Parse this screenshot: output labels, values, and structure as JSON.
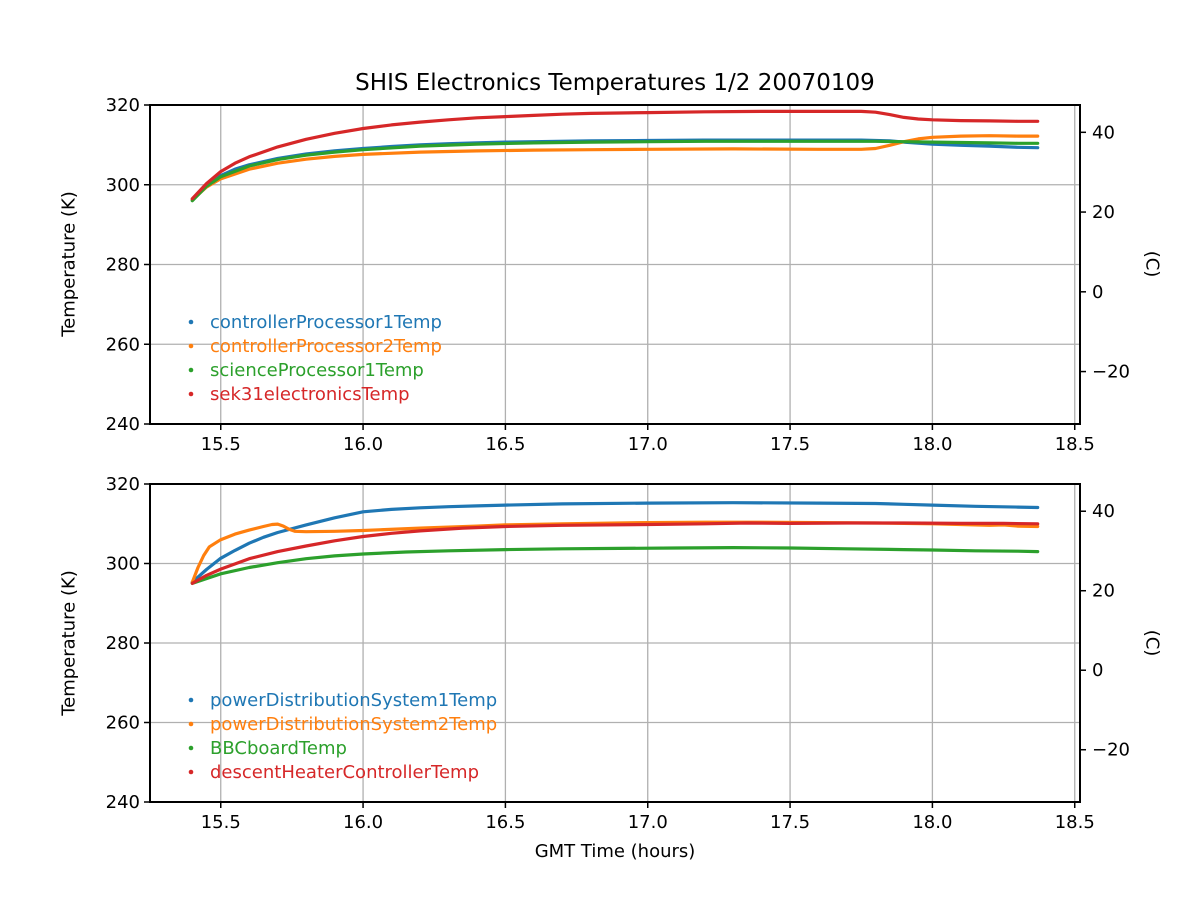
{
  "figure": {
    "title": "SHIS Electronics Temperatures 1/2 20070109",
    "background": "#ffffff",
    "text_color": "#000000",
    "grid_color": "#b0b0b0",
    "axis_color": "#000000"
  },
  "chart_data": [
    {
      "type": "line",
      "title": "",
      "xlabel": "",
      "ylabel": "Temperature (K)",
      "ylabel_right": "(C)",
      "xlim": [
        15.2515,
        18.5185
      ],
      "ylim": [
        240,
        320
      ],
      "grid": true,
      "legend_position": "lower-left",
      "xticks": [
        {
          "label": "15.5",
          "value": 15.5
        },
        {
          "label": "16.0",
          "value": 16.0
        },
        {
          "label": "16.5",
          "value": 16.5
        },
        {
          "label": "17.0",
          "value": 17.0
        },
        {
          "label": "17.5",
          "value": 17.5
        },
        {
          "label": "18.0",
          "value": 18.0
        },
        {
          "label": "18.5",
          "value": 18.5
        }
      ],
      "yticks": [
        {
          "label": "240",
          "value": 240
        },
        {
          "label": "260",
          "value": 260
        },
        {
          "label": "280",
          "value": 280
        },
        {
          "label": "300",
          "value": 300
        },
        {
          "label": "320",
          "value": 320
        }
      ],
      "yticks_right": [
        {
          "label": "−20",
          "value_c": -20,
          "value_k": 253.15
        },
        {
          "label": "0",
          "value_c": 0,
          "value_k": 273.15
        },
        {
          "label": "20",
          "value_c": 20,
          "value_k": 293.15
        },
        {
          "label": "40",
          "value_c": 40,
          "value_k": 313.15
        }
      ],
      "series": [
        {
          "name": "controllerProcessor1Temp",
          "color": "#1f77b4",
          "points": [
            [
              15.4,
              296.2
            ],
            [
              15.45,
              299.8
            ],
            [
              15.5,
              302.3
            ],
            [
              15.55,
              303.9
            ],
            [
              15.6,
              305.0
            ],
            [
              15.7,
              306.6
            ],
            [
              15.8,
              307.7
            ],
            [
              15.9,
              308.5
            ],
            [
              16.0,
              309.1
            ],
            [
              16.1,
              309.6
            ],
            [
              16.2,
              310.0
            ],
            [
              16.3,
              310.3
            ],
            [
              16.4,
              310.5
            ],
            [
              16.5,
              310.7
            ],
            [
              16.6,
              310.8
            ],
            [
              16.8,
              311.0
            ],
            [
              17.0,
              311.1
            ],
            [
              17.2,
              311.2
            ],
            [
              17.4,
              311.2
            ],
            [
              17.6,
              311.2
            ],
            [
              17.75,
              311.2
            ],
            [
              17.85,
              311.0
            ],
            [
              17.9,
              310.7
            ],
            [
              18.0,
              310.2
            ],
            [
              18.1,
              309.9
            ],
            [
              18.2,
              309.7
            ],
            [
              18.3,
              309.4
            ],
            [
              18.37,
              309.3
            ]
          ]
        },
        {
          "name": "controllerProcessor2Temp",
          "color": "#ff7f0e",
          "points": [
            [
              15.4,
              296.2
            ],
            [
              15.45,
              299.4
            ],
            [
              15.5,
              301.5
            ],
            [
              15.6,
              303.9
            ],
            [
              15.7,
              305.4
            ],
            [
              15.8,
              306.4
            ],
            [
              15.9,
              307.1
            ],
            [
              16.0,
              307.6
            ],
            [
              16.2,
              308.2
            ],
            [
              16.4,
              308.5
            ],
            [
              16.6,
              308.7
            ],
            [
              16.8,
              308.8
            ],
            [
              17.0,
              308.9
            ],
            [
              17.3,
              309.0
            ],
            [
              17.6,
              308.9
            ],
            [
              17.75,
              308.9
            ],
            [
              17.8,
              309.1
            ],
            [
              17.85,
              309.9
            ],
            [
              17.9,
              310.8
            ],
            [
              17.95,
              311.5
            ],
            [
              18.0,
              311.9
            ],
            [
              18.1,
              312.2
            ],
            [
              18.2,
              312.3
            ],
            [
              18.3,
              312.2
            ],
            [
              18.37,
              312.2
            ]
          ]
        },
        {
          "name": "scienceProcessor1Temp",
          "color": "#2ca02c",
          "points": [
            [
              15.4,
              296.0
            ],
            [
              15.45,
              299.6
            ],
            [
              15.5,
              302.0
            ],
            [
              15.6,
              304.7
            ],
            [
              15.7,
              306.3
            ],
            [
              15.8,
              307.4
            ],
            [
              15.9,
              308.2
            ],
            [
              16.0,
              308.8
            ],
            [
              16.2,
              309.7
            ],
            [
              16.4,
              310.2
            ],
            [
              16.6,
              310.5
            ],
            [
              16.8,
              310.7
            ],
            [
              17.0,
              310.8
            ],
            [
              17.2,
              310.9
            ],
            [
              17.5,
              310.9
            ],
            [
              17.8,
              310.9
            ],
            [
              17.9,
              310.8
            ],
            [
              18.0,
              310.7
            ],
            [
              18.1,
              310.6
            ],
            [
              18.2,
              310.5
            ],
            [
              18.3,
              310.4
            ],
            [
              18.37,
              310.4
            ]
          ]
        },
        {
          "name": "sek31electronicsTemp",
          "color": "#d62728",
          "points": [
            [
              15.4,
              296.5
            ],
            [
              15.45,
              300.3
            ],
            [
              15.5,
              303.3
            ],
            [
              15.55,
              305.4
            ],
            [
              15.6,
              307.0
            ],
            [
              15.7,
              309.5
            ],
            [
              15.8,
              311.4
            ],
            [
              15.9,
              312.9
            ],
            [
              16.0,
              314.1
            ],
            [
              16.1,
              315.0
            ],
            [
              16.2,
              315.7
            ],
            [
              16.3,
              316.3
            ],
            [
              16.4,
              316.8
            ],
            [
              16.5,
              317.1
            ],
            [
              16.6,
              317.4
            ],
            [
              16.7,
              317.7
            ],
            [
              16.8,
              317.9
            ],
            [
              16.9,
              318.0
            ],
            [
              17.0,
              318.1
            ],
            [
              17.2,
              318.3
            ],
            [
              17.4,
              318.4
            ],
            [
              17.6,
              318.4
            ],
            [
              17.75,
              318.4
            ],
            [
              17.8,
              318.2
            ],
            [
              17.85,
              317.6
            ],
            [
              17.9,
              316.9
            ],
            [
              17.95,
              316.5
            ],
            [
              18.0,
              316.3
            ],
            [
              18.1,
              316.1
            ],
            [
              18.2,
              316.0
            ],
            [
              18.3,
              315.9
            ],
            [
              18.37,
              315.9
            ]
          ]
        }
      ]
    },
    {
      "type": "line",
      "title": "",
      "xlabel": "GMT Time (hours)",
      "ylabel": "Temperature (K)",
      "ylabel_right": "(C)",
      "xlim": [
        15.2515,
        18.5185
      ],
      "ylim": [
        240,
        320
      ],
      "grid": true,
      "legend_position": "lower-left",
      "xticks": [
        {
          "label": "15.5",
          "value": 15.5
        },
        {
          "label": "16.0",
          "value": 16.0
        },
        {
          "label": "16.5",
          "value": 16.5
        },
        {
          "label": "17.0",
          "value": 17.0
        },
        {
          "label": "17.5",
          "value": 17.5
        },
        {
          "label": "18.0",
          "value": 18.0
        },
        {
          "label": "18.5",
          "value": 18.5
        }
      ],
      "yticks": [
        {
          "label": "240",
          "value": 240
        },
        {
          "label": "260",
          "value": 260
        },
        {
          "label": "280",
          "value": 280
        },
        {
          "label": "300",
          "value": 300
        },
        {
          "label": "320",
          "value": 320
        }
      ],
      "yticks_right": [
        {
          "label": "−20",
          "value_c": -20,
          "value_k": 253.15
        },
        {
          "label": "0",
          "value_c": 0,
          "value_k": 273.15
        },
        {
          "label": "20",
          "value_c": 20,
          "value_k": 293.15
        },
        {
          "label": "40",
          "value_c": 40,
          "value_k": 313.15
        }
      ],
      "series": [
        {
          "name": "powerDistributionSystem1Temp",
          "color": "#1f77b4",
          "points": [
            [
              15.4,
              295.3
            ],
            [
              15.45,
              298.5
            ],
            [
              15.5,
              301.3
            ],
            [
              15.55,
              303.3
            ],
            [
              15.6,
              305.1
            ],
            [
              15.65,
              306.6
            ],
            [
              15.7,
              307.8
            ],
            [
              15.8,
              309.7
            ],
            [
              15.9,
              311.5
            ],
            [
              16.0,
              313.0
            ],
            [
              16.1,
              313.6
            ],
            [
              16.2,
              314.0
            ],
            [
              16.3,
              314.3
            ],
            [
              16.4,
              314.5
            ],
            [
              16.5,
              314.7
            ],
            [
              16.7,
              315.0
            ],
            [
              17.0,
              315.2
            ],
            [
              17.3,
              315.3
            ],
            [
              17.6,
              315.2
            ],
            [
              17.8,
              315.1
            ],
            [
              17.9,
              314.9
            ],
            [
              18.0,
              314.7
            ],
            [
              18.15,
              314.4
            ],
            [
              18.3,
              314.2
            ],
            [
              18.37,
              314.1
            ]
          ]
        },
        {
          "name": "powerDistributionSystem2Temp",
          "color": "#ff7f0e",
          "points": [
            [
              15.4,
              295.3
            ],
            [
              15.42,
              299.0
            ],
            [
              15.44,
              302.0
            ],
            [
              15.46,
              304.2
            ],
            [
              15.5,
              306.0
            ],
            [
              15.55,
              307.4
            ],
            [
              15.6,
              308.4
            ],
            [
              15.65,
              309.3
            ],
            [
              15.68,
              309.8
            ],
            [
              15.7,
              309.9
            ],
            [
              15.72,
              309.4
            ],
            [
              15.74,
              308.6
            ],
            [
              15.76,
              308.1
            ],
            [
              15.8,
              308.0
            ],
            [
              15.9,
              308.1
            ],
            [
              16.0,
              308.3
            ],
            [
              16.2,
              308.9
            ],
            [
              16.4,
              309.4
            ],
            [
              16.5,
              309.7
            ],
            [
              16.7,
              310.0
            ],
            [
              16.9,
              310.2
            ],
            [
              17.0,
              310.3
            ],
            [
              17.2,
              310.4
            ],
            [
              17.4,
              310.4
            ],
            [
              17.6,
              310.3
            ],
            [
              17.8,
              310.2
            ],
            [
              17.9,
              310.1
            ],
            [
              18.0,
              310.0
            ],
            [
              18.1,
              309.8
            ],
            [
              18.2,
              309.6
            ],
            [
              18.25,
              309.7
            ],
            [
              18.3,
              309.4
            ],
            [
              18.37,
              309.3
            ]
          ]
        },
        {
          "name": "BBCboardTemp",
          "color": "#2ca02c",
          "points": [
            [
              15.4,
              295.0
            ],
            [
              15.5,
              297.4
            ],
            [
              15.6,
              299.0
            ],
            [
              15.7,
              300.2
            ],
            [
              15.8,
              301.2
            ],
            [
              15.9,
              301.9
            ],
            [
              16.0,
              302.4
            ],
            [
              16.15,
              302.9
            ],
            [
              16.3,
              303.2
            ],
            [
              16.5,
              303.5
            ],
            [
              16.7,
              303.7
            ],
            [
              16.9,
              303.8
            ],
            [
              17.1,
              303.9
            ],
            [
              17.3,
              304.0
            ],
            [
              17.5,
              303.9
            ],
            [
              17.7,
              303.7
            ],
            [
              17.9,
              303.5
            ],
            [
              18.0,
              303.4
            ],
            [
              18.15,
              303.2
            ],
            [
              18.3,
              303.1
            ],
            [
              18.37,
              303.0
            ]
          ]
        },
        {
          "name": "descentHeaterControllerTemp",
          "color": "#d62728",
          "points": [
            [
              15.4,
              295.0
            ],
            [
              15.45,
              297.0
            ],
            [
              15.5,
              298.6
            ],
            [
              15.6,
              301.2
            ],
            [
              15.7,
              303.0
            ],
            [
              15.8,
              304.4
            ],
            [
              15.9,
              305.7
            ],
            [
              16.0,
              306.8
            ],
            [
              16.1,
              307.6
            ],
            [
              16.2,
              308.2
            ],
            [
              16.35,
              308.9
            ],
            [
              16.5,
              309.3
            ],
            [
              16.7,
              309.6
            ],
            [
              17.0,
              309.8
            ],
            [
              17.2,
              310.0
            ],
            [
              17.35,
              310.2
            ],
            [
              17.5,
              310.1
            ],
            [
              17.7,
              310.2
            ],
            [
              17.9,
              310.2
            ],
            [
              18.1,
              310.1
            ],
            [
              18.25,
              310.1
            ],
            [
              18.37,
              310.0
            ]
          ]
        }
      ]
    }
  ]
}
